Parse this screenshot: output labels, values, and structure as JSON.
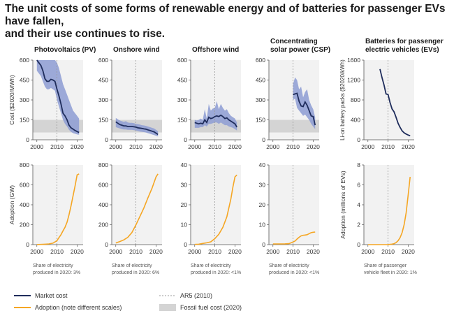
{
  "title_lines": [
    "The unit costs of some forms of renewable energy and of batteries for passenger EVs have fallen,",
    "and their use continues to rise."
  ],
  "colors": {
    "cost": "#1f2d5c",
    "band": "#8d9cd3",
    "adoption": "#f5a623",
    "fossil": "#d4d4d4",
    "panel_bg": "#f2f2f2",
    "ar5": "#999999"
  },
  "chart_data": [
    {
      "type": "line",
      "title": "Photovoltaics (PV)",
      "cost": {
        "ylabel": "Cost ($2020/MWh)",
        "ylim": [
          0,
          600
        ],
        "yticks": [
          0,
          150,
          300,
          450,
          600
        ],
        "x": [
          2000,
          2001,
          2002,
          2003,
          2004,
          2005,
          2006,
          2007,
          2008,
          2009,
          2010,
          2011,
          2012,
          2013,
          2014,
          2015,
          2016,
          2017,
          2018,
          2019,
          2020,
          2021
        ],
        "values": [
          600,
          580,
          560,
          520,
          460,
          440,
          440,
          455,
          450,
          440,
          380,
          330,
          270,
          200,
          180,
          150,
          110,
          90,
          80,
          70,
          62,
          55
        ],
        "band_low": [
          520,
          500,
          480,
          440,
          400,
          380,
          380,
          390,
          380,
          370,
          300,
          250,
          200,
          150,
          120,
          100,
          75,
          60,
          50,
          45,
          40,
          38
        ],
        "band_high": [
          600,
          600,
          600,
          600,
          600,
          600,
          600,
          600,
          600,
          600,
          580,
          540,
          480,
          420,
          380,
          340,
          300,
          260,
          220,
          200,
          180,
          160
        ],
        "fossil_range": [
          55,
          150
        ]
      },
      "adoption": {
        "ylabel": "Adoption (GW)",
        "ylim": [
          0,
          800
        ],
        "yticks": [
          0,
          200,
          400,
          600,
          800
        ],
        "x": [
          2000,
          2002,
          2004,
          2006,
          2008,
          2010,
          2011,
          2012,
          2013,
          2014,
          2015,
          2016,
          2017,
          2018,
          2019,
          2020,
          2021
        ],
        "values": [
          1,
          2,
          4,
          7,
          15,
          40,
          70,
          100,
          138,
          175,
          225,
          300,
          390,
          490,
          590,
          700,
          710
        ]
      },
      "footnote": [
        "Share of electricity",
        "produced in 2020: 3%"
      ]
    },
    {
      "type": "line",
      "title": "Onshore wind",
      "cost": {
        "ylabel": "",
        "ylim": [
          0,
          600
        ],
        "yticks": [
          0,
          150,
          300,
          450,
          600
        ],
        "x": [
          2000,
          2001,
          2002,
          2003,
          2004,
          2005,
          2006,
          2007,
          2008,
          2009,
          2010,
          2011,
          2012,
          2013,
          2014,
          2015,
          2016,
          2017,
          2018,
          2019,
          2020,
          2021
        ],
        "values": [
          135,
          125,
          115,
          110,
          105,
          105,
          100,
          100,
          100,
          98,
          95,
          90,
          88,
          85,
          82,
          80,
          75,
          70,
          65,
          60,
          50,
          40
        ],
        "band_low": [
          95,
          90,
          85,
          80,
          78,
          78,
          75,
          75,
          75,
          72,
          70,
          66,
          62,
          60,
          58,
          55,
          50,
          45,
          40,
          35,
          30,
          25
        ],
        "band_high": [
          165,
          155,
          145,
          140,
          135,
          140,
          130,
          128,
          128,
          125,
          120,
          118,
          115,
          110,
          108,
          105,
          100,
          95,
          90,
          85,
          75,
          65
        ],
        "fossil_range": [
          55,
          150
        ]
      },
      "adoption": {
        "ylabel": "",
        "ylim": [
          0,
          800
        ],
        "yticks": [
          0,
          200,
          400,
          600,
          800
        ],
        "x": [
          2000,
          2002,
          2004,
          2006,
          2008,
          2010,
          2012,
          2014,
          2016,
          2018,
          2020,
          2021
        ],
        "values": [
          17,
          31,
          48,
          74,
          121,
          198,
          283,
          370,
          470,
          565,
          680,
          710
        ]
      },
      "footnote": [
        "Share of electricity",
        "produced in 2020: 6%"
      ]
    },
    {
      "type": "line",
      "title": "Offshore wind",
      "cost": {
        "ylabel": "",
        "ylim": [
          0,
          600
        ],
        "yticks": [
          0,
          150,
          300,
          450,
          600
        ],
        "x": [
          2000,
          2001,
          2002,
          2003,
          2004,
          2005,
          2006,
          2007,
          2008,
          2009,
          2010,
          2011,
          2012,
          2013,
          2014,
          2015,
          2016,
          2017,
          2018,
          2019,
          2020,
          2021
        ],
        "values": [
          130,
          125,
          120,
          125,
          120,
          150,
          130,
          170,
          160,
          165,
          175,
          180,
          175,
          185,
          175,
          160,
          165,
          150,
          140,
          130,
          120,
          95
        ],
        "band_low": [
          90,
          90,
          90,
          95,
          95,
          110,
          100,
          120,
          120,
          125,
          130,
          130,
          120,
          130,
          120,
          110,
          110,
          100,
          95,
          90,
          80,
          70
        ],
        "band_high": [
          150,
          145,
          150,
          160,
          150,
          230,
          160,
          270,
          220,
          235,
          240,
          290,
          230,
          270,
          240,
          220,
          230,
          200,
          180,
          170,
          160,
          130
        ],
        "fossil_range": [
          55,
          150
        ]
      },
      "adoption": {
        "ylabel": "",
        "ylim": [
          0,
          40
        ],
        "yticks": [
          0,
          10,
          20,
          30,
          40
        ],
        "x": [
          2000,
          2002,
          2004,
          2006,
          2008,
          2010,
          2012,
          2014,
          2016,
          2018,
          2019,
          2020,
          2021
        ],
        "values": [
          0.1,
          0.2,
          0.6,
          0.9,
          1.4,
          3,
          5.2,
          8.7,
          14,
          23,
          29,
          34,
          35
        ]
      },
      "footnote": [
        "Share of electricity",
        "produced in 2020: <1%"
      ]
    },
    {
      "type": "line",
      "title_lines": [
        "Concentrating",
        "solar power (CSP)"
      ],
      "cost": {
        "ylabel": "",
        "ylim": [
          0,
          600
        ],
        "yticks": [
          0,
          150,
          300,
          450,
          600
        ],
        "x": [
          2010,
          2011,
          2012,
          2013,
          2014,
          2015,
          2016,
          2017,
          2018,
          2019,
          2020,
          2021
        ],
        "values": [
          340,
          345,
          350,
          290,
          255,
          250,
          285,
          260,
          220,
          180,
          175,
          110
        ],
        "band_low": [
          300,
          310,
          240,
          220,
          200,
          180,
          190,
          170,
          150,
          120,
          100,
          80
        ],
        "band_high": [
          420,
          470,
          450,
          380,
          400,
          320,
          360,
          380,
          300,
          260,
          230,
          170
        ],
        "fossil_range": [
          55,
          150
        ]
      },
      "adoption": {
        "ylabel": "",
        "ylim": [
          0,
          40
        ],
        "yticks": [
          0,
          10,
          20,
          30,
          40
        ],
        "x": [
          2000,
          2004,
          2006,
          2008,
          2010,
          2011,
          2012,
          2013,
          2014,
          2015,
          2016,
          2017,
          2018,
          2019,
          2020,
          2021
        ],
        "values": [
          0.35,
          0.35,
          0.4,
          0.5,
          1.3,
          1.8,
          2.8,
          3.7,
          4.4,
          4.7,
          4.8,
          5,
          5.5,
          6,
          6.2,
          6.3
        ]
      },
      "footnote": [
        "Share of electricity",
        "produced in 2020: <1%"
      ]
    },
    {
      "type": "line",
      "title_lines": [
        "Batteries for passenger",
        "electric vehicles (EVs)"
      ],
      "cost": {
        "ylabel": "Li-on battery packs ($2020/kWh)",
        "ylim": [
          0,
          1600
        ],
        "yticks": [
          0,
          400,
          800,
          1200,
          1600
        ],
        "x": [
          2006,
          2007,
          2008,
          2009,
          2010,
          2011,
          2012,
          2013,
          2014,
          2015,
          2016,
          2017,
          2018,
          2019,
          2020,
          2021
        ],
        "values": [
          1420,
          1250,
          1100,
          920,
          910,
          750,
          620,
          560,
          450,
          330,
          250,
          180,
          140,
          115,
          95,
          80
        ],
        "fossil_range": null
      },
      "adoption": {
        "ylabel": "Adoption (millions of EVs)",
        "ylim": [
          0,
          8
        ],
        "yticks": [
          0,
          2,
          4,
          6,
          8
        ],
        "x": [
          2000,
          2008,
          2010,
          2012,
          2013,
          2014,
          2015,
          2016,
          2017,
          2018,
          2019,
          2020,
          2021
        ],
        "values": [
          0,
          0,
          0.01,
          0.05,
          0.1,
          0.2,
          0.4,
          0.7,
          1.2,
          2,
          3.2,
          5,
          6.8
        ]
      },
      "footnote": [
        "Share of passenger",
        "vehicle fleet in 2020: 1%"
      ]
    }
  ],
  "xticks": [
    2000,
    2010,
    2020
  ],
  "ar5_year": 2010,
  "legend": {
    "market_cost": "Market cost",
    "adoption": "Adoption (note different scales)",
    "ar5": "AR5 (2010)",
    "fossil": "Fossil fuel cost (2020)"
  }
}
